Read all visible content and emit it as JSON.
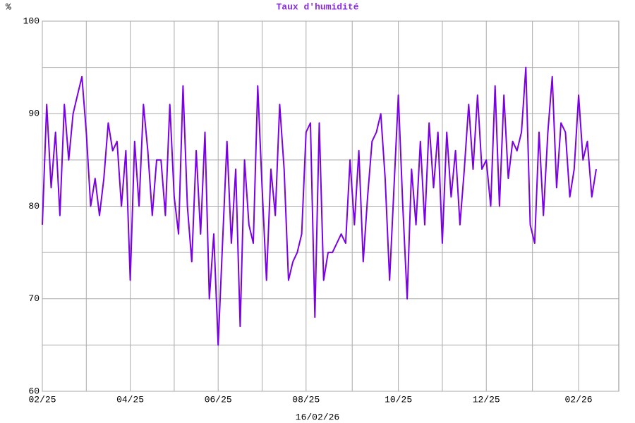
{
  "chart_data": {
    "type": "line",
    "title": "Taux d'humidité",
    "y_label": "%",
    "x_label": "16/02/26",
    "color": "#7b00e6",
    "title_color": "#8a2be2",
    "categories": [
      "02/25",
      null,
      null,
      null,
      null,
      null,
      null,
      null,
      null,
      null,
      null,
      null,
      null,
      null,
      null,
      null,
      null,
      null,
      null,
      null,
      "04/25",
      null,
      null,
      null,
      null,
      null,
      null,
      null,
      null,
      null,
      null,
      null,
      null,
      null,
      null,
      null,
      null,
      null,
      null,
      null,
      "06/25",
      null,
      null,
      null,
      null,
      null,
      null,
      null,
      null,
      null,
      null,
      null,
      null,
      null,
      null,
      null,
      null,
      null,
      null,
      null,
      "08/25",
      null,
      null,
      null,
      null,
      null,
      null,
      null,
      null,
      null,
      null,
      null,
      null,
      null,
      null,
      null,
      null,
      null,
      null,
      null,
      null,
      "10/25",
      null,
      null,
      null,
      null,
      null,
      null,
      null,
      null,
      null,
      null,
      null,
      null,
      null,
      null,
      null,
      null,
      null,
      null,
      null,
      "12/25",
      null,
      null,
      null,
      null,
      null,
      null,
      null,
      null,
      null,
      null,
      null,
      null,
      null,
      null,
      null,
      null,
      null,
      null,
      null,
      null,
      "02/26",
      null,
      null,
      null,
      null
    ],
    "values": [
      78,
      91,
      82,
      88,
      79,
      91,
      85,
      90,
      92,
      94,
      88,
      80,
      83,
      79,
      83,
      89,
      86,
      87,
      80,
      86,
      72,
      87,
      80,
      91,
      86,
      79,
      85,
      85,
      79,
      91,
      81,
      77,
      93,
      80,
      74,
      86,
      77,
      88,
      70,
      77,
      65,
      76,
      87,
      76,
      84,
      67,
      85,
      78,
      76,
      93,
      82,
      72,
      84,
      79,
      91,
      84,
      72,
      74,
      75,
      77,
      88,
      89,
      68,
      89,
      72,
      75,
      75,
      76,
      77,
      76,
      85,
      78,
      86,
      74,
      81,
      87,
      88,
      90,
      83,
      72,
      82,
      92,
      80,
      70,
      84,
      78,
      87,
      78,
      89,
      82,
      88,
      76,
      88,
      81,
      86,
      78,
      84,
      91,
      84,
      92,
      84,
      85,
      80,
      93,
      80,
      92,
      83,
      87,
      86,
      88,
      95,
      78,
      76,
      88,
      79,
      88,
      94,
      82,
      89,
      88,
      81,
      84,
      92,
      85,
      87,
      81,
      84
    ],
    "ylim": [
      60,
      100
    ],
    "yticks": [
      60,
      70,
      80,
      90,
      100
    ],
    "minor_yticks": [
      65,
      75,
      85,
      95
    ],
    "grid": true
  }
}
